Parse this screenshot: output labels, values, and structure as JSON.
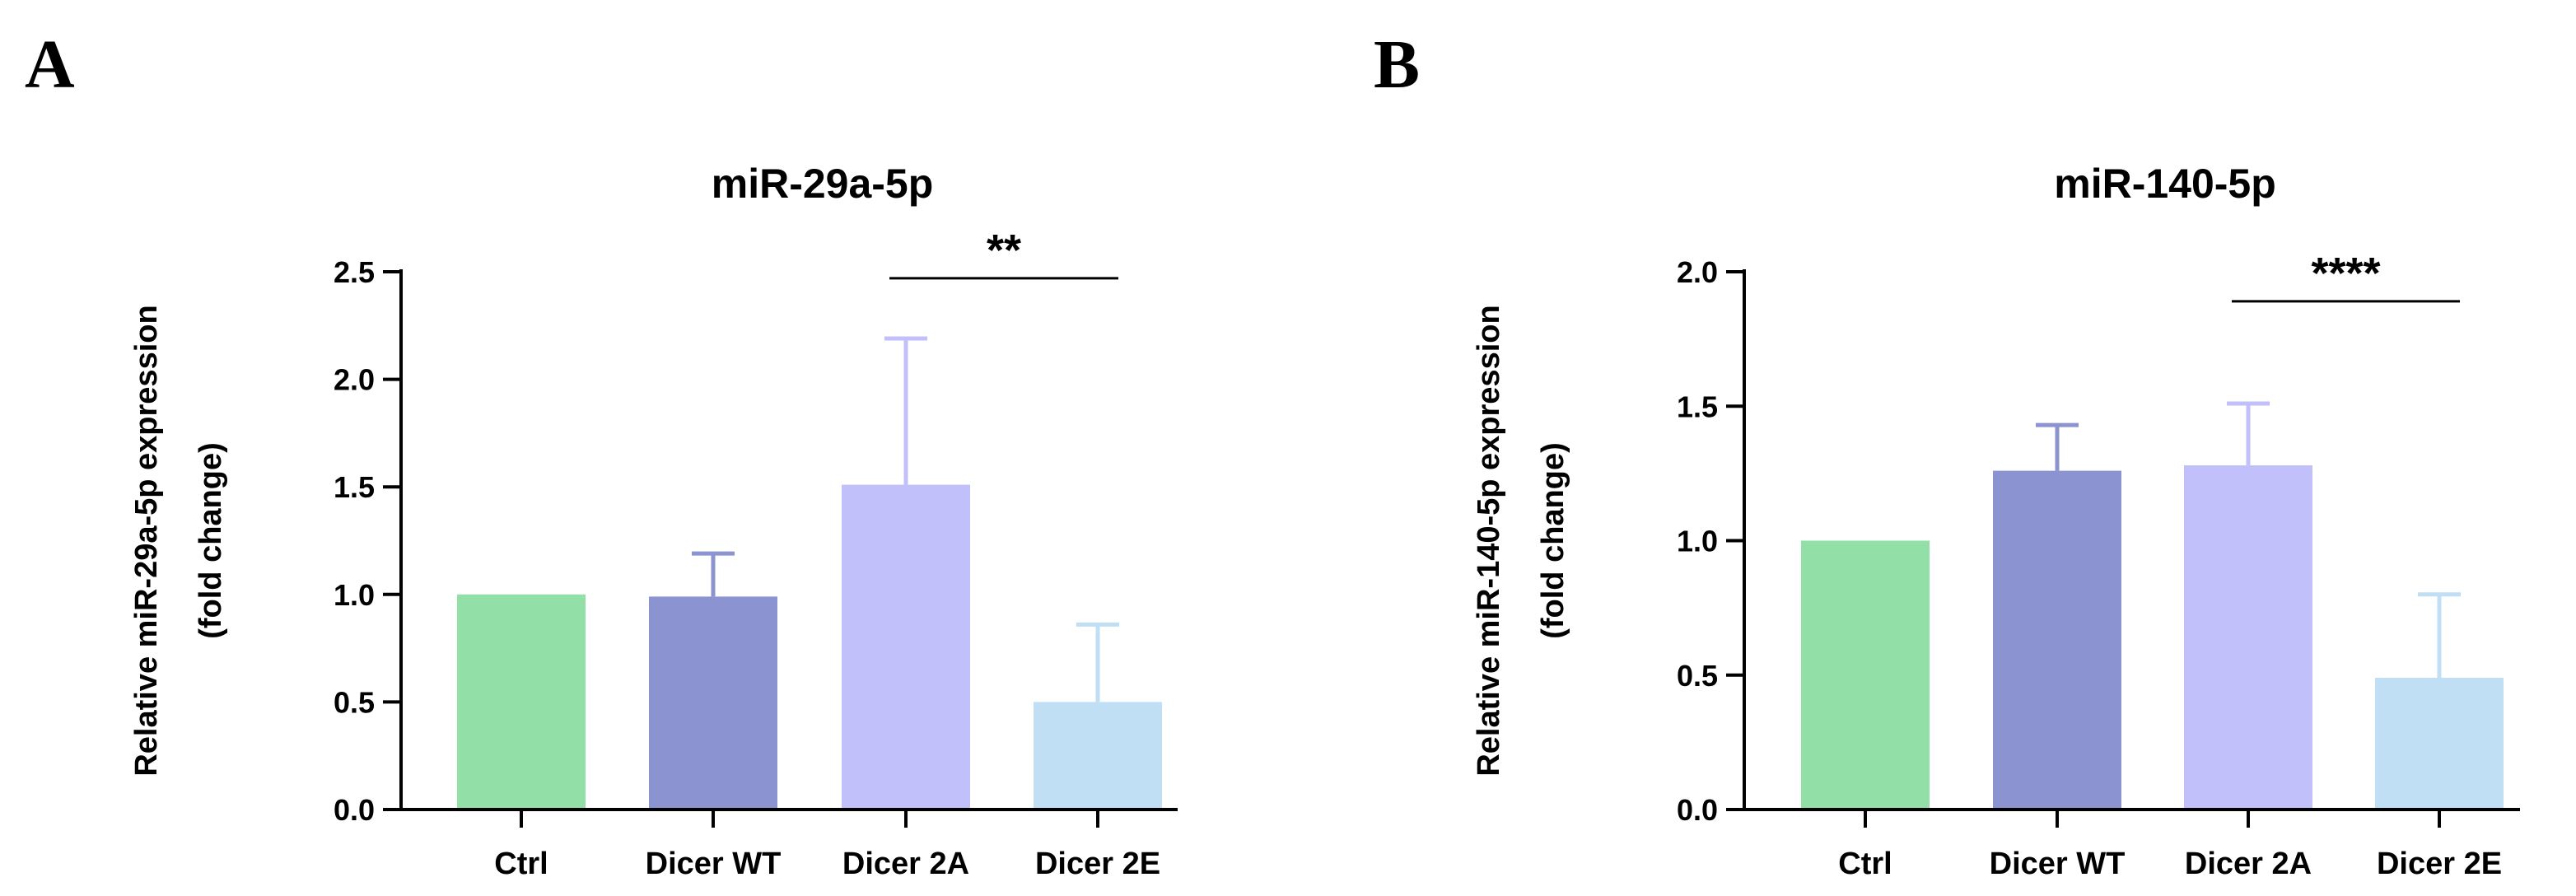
{
  "panels": [
    {
      "letter": "A"
    },
    {
      "letter": "B"
    }
  ],
  "chart_data": [
    {
      "type": "bar",
      "title": "miR-29a-5p",
      "ylabel_line1": "Relative miR-29a-5p expression",
      "ylabel_line2": "(fold change)",
      "xlabel": "",
      "categories": [
        "Ctrl",
        "Dicer WT",
        "Dicer 2A",
        "Dicer 2E"
      ],
      "values": [
        1.0,
        0.99,
        1.51,
        0.5
      ],
      "error_upper": [
        1.0,
        1.19,
        2.19,
        0.86
      ],
      "colors": [
        "#92e0a8",
        "#8b93d0",
        "#c2c0fa",
        "#c0dff5"
      ],
      "ylim": [
        0,
        2.5
      ],
      "yticks": [
        0.0,
        0.5,
        1.0,
        1.5,
        2.0,
        2.5
      ],
      "ytick_labels": [
        "0.0",
        "0.5",
        "1.0",
        "1.5",
        "2.0",
        "2.5"
      ],
      "significance": {
        "from": 2,
        "to": 3,
        "label": "**"
      }
    },
    {
      "type": "bar",
      "title": "miR-140-5p",
      "ylabel_line1": "Relative miR-140-5p expression",
      "ylabel_line2": "(fold change)",
      "xlabel": "",
      "categories": [
        "Ctrl",
        "Dicer WT",
        "Dicer 2A",
        "Dicer 2E"
      ],
      "values": [
        1.0,
        1.26,
        1.28,
        0.49
      ],
      "error_upper": [
        1.0,
        1.43,
        1.51,
        0.8
      ],
      "colors": [
        "#92e0a8",
        "#8b93d0",
        "#c2c0fa",
        "#c0dff5"
      ],
      "ylim": [
        0,
        2.0
      ],
      "yticks": [
        0.0,
        0.5,
        1.0,
        1.5,
        2.0
      ],
      "ytick_labels": [
        "0.0",
        "0.5",
        "1.0",
        "1.5",
        "2.0"
      ],
      "significance": {
        "from": 2,
        "to": 3,
        "label": "****"
      }
    }
  ]
}
